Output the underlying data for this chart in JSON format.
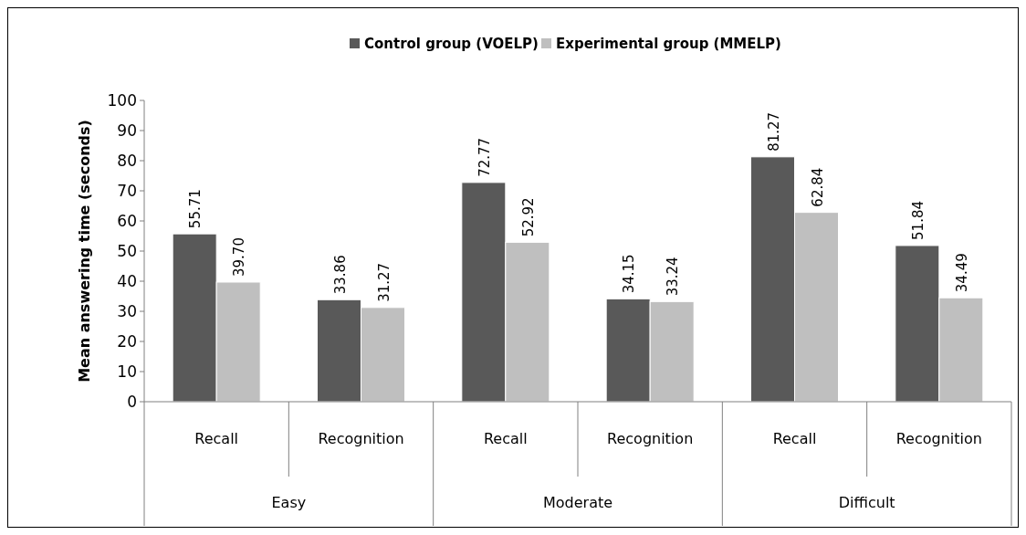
{
  "chart_data": {
    "type": "bar",
    "ylabel": "Mean answering time (seconds)",
    "categories": [
      "Recall",
      "Recognition",
      "Recall",
      "Recognition",
      "Recall",
      "Recognition"
    ],
    "series": [
      {
        "name": "Control group (VOELP)",
        "color": "#595959",
        "values": [
          55.71,
          33.86,
          72.77,
          34.15,
          81.27,
          51.84
        ],
        "value_labels": [
          "55.71",
          "33.86",
          "72.77",
          "34.15",
          "81.27",
          "51.84"
        ]
      },
      {
        "name": "Experimental group (MMELP)",
        "color": "#bfbfbf",
        "values": [
          39.7,
          31.27,
          52.92,
          33.24,
          62.84,
          34.49
        ],
        "value_labels": [
          "39.70",
          "31.27",
          "52.92",
          "33.24",
          "62.84",
          "34.49"
        ]
      }
    ],
    "annotations": [
      "Easy",
      "Moderate",
      "Difficult"
    ],
    "ylim": [
      0,
      100
    ],
    "yticks": [
      0,
      10,
      20,
      30,
      40,
      50,
      60,
      70,
      80,
      90,
      100
    ],
    "grid": false,
    "legend": "top"
  }
}
